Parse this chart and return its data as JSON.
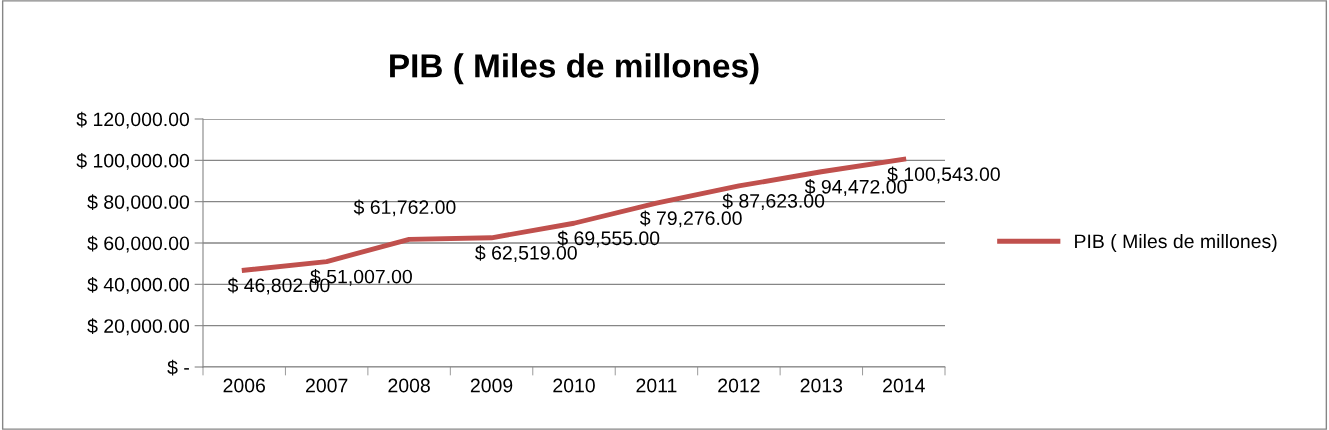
{
  "chart_data": {
    "type": "line",
    "title": "PIB ( Miles de millones)",
    "categories": [
      "2006",
      "2007",
      "2008",
      "2009",
      "2010",
      "2011",
      "2012",
      "2013",
      "2014"
    ],
    "series": [
      {
        "name": "PIB ( Miles de millones)",
        "color": "#c0504d",
        "values": [
          46802,
          51007,
          61762,
          62519,
          69555,
          79276,
          87623,
          94472,
          100543
        ],
        "value_labels": [
          "$ 46,802.00",
          "$ 51,007.00",
          "$ 61,762.00",
          "$ 62,519.00",
          "$ 69,555.00",
          "$ 79,276.00",
          "$ 87,623.00",
          "$ 94,472.00",
          "$ 100,543.00"
        ]
      }
    ],
    "ylim": [
      0,
      120000
    ],
    "yticks": [
      {
        "value": 0,
        "label": "$ -"
      },
      {
        "value": 20000,
        "label": "$ 20,000.00"
      },
      {
        "value": 40000,
        "label": "$ 40,000.00"
      },
      {
        "value": 60000,
        "label": "$ 60,000.00"
      },
      {
        "value": 80000,
        "label": "$ 80,000.00"
      },
      {
        "value": 100000,
        "label": "$ 100,000.00"
      },
      {
        "value": 120000,
        "label": "$ 120,000.00"
      }
    ],
    "grid": "y",
    "legend": "right",
    "marker": "none",
    "line_style": "solid"
  }
}
